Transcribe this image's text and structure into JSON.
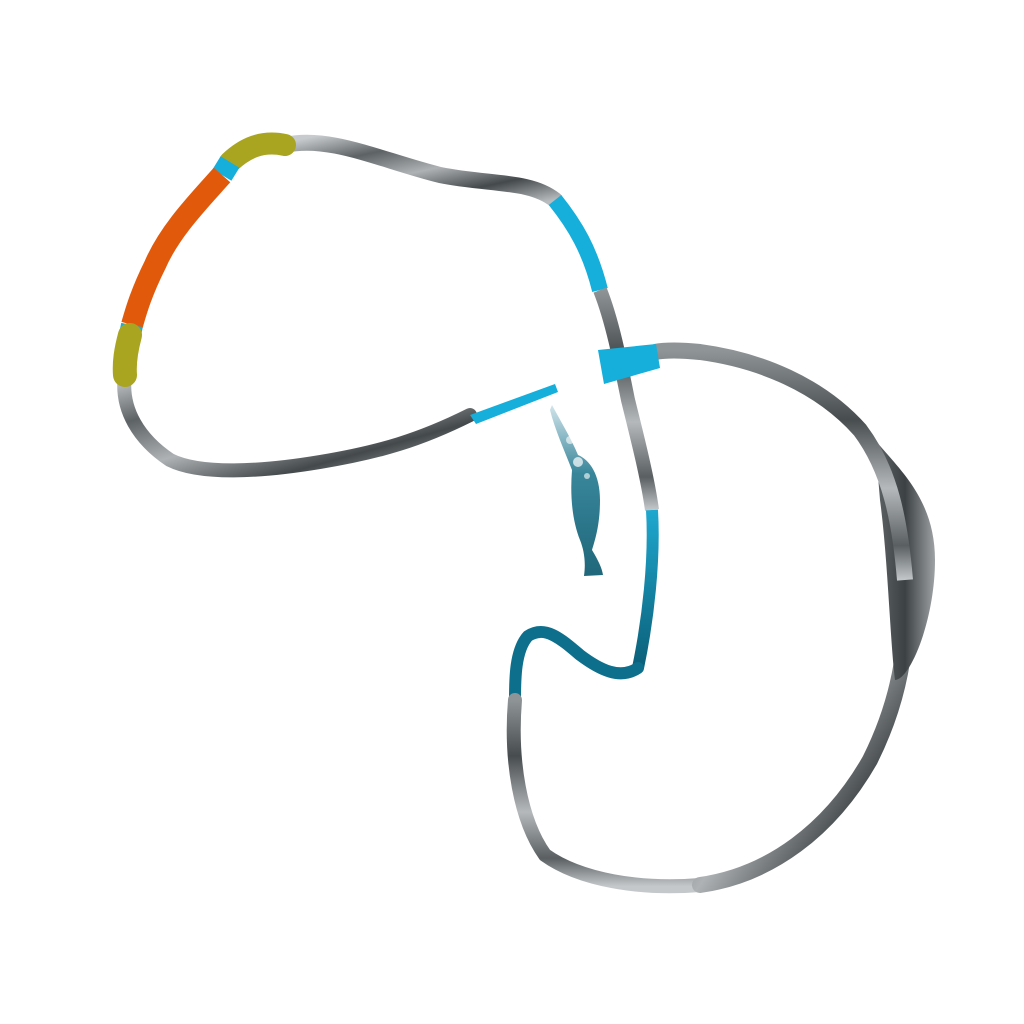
{
  "scene": {
    "kind": "3d-ribbon-rendering",
    "background_color": "#ffffff",
    "palette": {
      "cyan": "#16aedb",
      "teal": "#0e6f8c",
      "orange": "#e15a0c",
      "olive": "#a9a521",
      "gray_light": "#b9bdbf",
      "gray_mid": "#8d9295",
      "gray_dark": "#3f4446"
    }
  }
}
